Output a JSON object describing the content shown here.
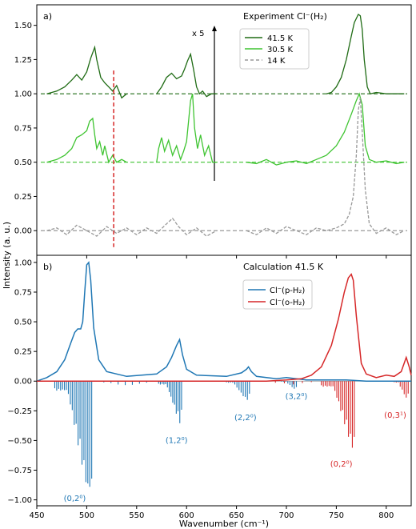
{
  "figure": {
    "ylabel": "Intensity (a. u.)",
    "xlabel": "Wavenumber (cm⁻¹)",
    "xlim": [
      450,
      825
    ],
    "xticks": [
      450,
      500,
      550,
      600,
      650,
      700,
      750,
      800
    ]
  },
  "chart_data": [
    {
      "type": "line",
      "panel": "a)",
      "title": "Experiment Cl⁻(H₂)",
      "ylim": [
        -0.18,
        1.65
      ],
      "yticks": [
        "0.00",
        "0.25",
        "0.50",
        "0.75",
        "1.00",
        "1.25",
        "1.50"
      ],
      "ytick_values": [
        0,
        0.25,
        0.5,
        0.75,
        1.0,
        1.25,
        1.5
      ],
      "legend_position": "top-center",
      "annotation": "x 5",
      "series": [
        {
          "name": "41.5 K",
          "color": "#1f6b14",
          "baseline": 1.0,
          "style": "solid",
          "segments": [
            {
              "x": [
                460,
                470,
                478,
                485,
                490,
                495,
                500,
                504,
                508,
                510,
                514,
                518,
                522,
                526,
                530,
                535,
                540
              ],
              "y": [
                1.0,
                1.02,
                1.05,
                1.1,
                1.14,
                1.1,
                1.16,
                1.26,
                1.34,
                1.25,
                1.12,
                1.08,
                1.05,
                1.02,
                1.06,
                0.97,
                1.0
              ]
            },
            {
              "x": [
                570,
                575,
                580,
                585,
                590,
                595,
                598,
                601,
                604,
                607,
                610,
                613,
                616,
                620,
                625,
                630
              ],
              "y": [
                1.0,
                1.05,
                1.12,
                1.15,
                1.11,
                1.13,
                1.18,
                1.24,
                1.29,
                1.18,
                1.05,
                1.0,
                1.02,
                0.98,
                1.0,
                1.0
              ]
            },
            {
              "x": [
                740,
                745,
                750,
                755,
                760,
                765,
                768,
                772,
                774,
                776,
                778,
                781,
                784,
                790,
                800,
                810,
                818
              ],
              "y": [
                1.0,
                1.01,
                1.05,
                1.12,
                1.25,
                1.42,
                1.52,
                1.58,
                1.57,
                1.47,
                1.25,
                1.05,
                1.0,
                1.01,
                1.0,
                1.0,
                1.0
              ]
            }
          ]
        },
        {
          "name": "30.5 K",
          "color": "#3fc431",
          "baseline": 0.5,
          "style": "solid",
          "segments": [
            {
              "x": [
                460,
                470,
                478,
                485,
                490,
                495,
                500,
                503,
                506,
                508,
                510,
                513,
                516,
                518,
                522,
                526,
                530,
                535,
                540
              ],
              "y": [
                0.5,
                0.52,
                0.55,
                0.6,
                0.68,
                0.7,
                0.73,
                0.8,
                0.82,
                0.7,
                0.6,
                0.65,
                0.55,
                0.62,
                0.5,
                0.55,
                0.5,
                0.52,
                0.5
              ]
            },
            {
              "x": [
                570,
                572,
                575,
                578,
                582,
                586,
                590,
                594,
                597,
                600,
                602,
                604,
                606,
                608,
                611,
                614,
                618,
                622,
                626,
                630
              ],
              "y": [
                0.5,
                0.6,
                0.68,
                0.58,
                0.66,
                0.55,
                0.62,
                0.52,
                0.58,
                0.65,
                0.8,
                0.95,
                1.0,
                0.75,
                0.6,
                0.7,
                0.55,
                0.62,
                0.5,
                0.5
              ]
            },
            {
              "x": [
                660,
                670,
                680,
                690,
                700,
                710,
                720,
                730,
                740,
                750,
                758,
                765,
                770,
                773,
                776,
                779,
                783,
                790,
                800,
                810,
                818
              ],
              "y": [
                0.5,
                0.49,
                0.52,
                0.48,
                0.5,
                0.51,
                0.49,
                0.52,
                0.55,
                0.62,
                0.72,
                0.85,
                0.95,
                1.0,
                0.92,
                0.62,
                0.52,
                0.5,
                0.51,
                0.49,
                0.5
              ]
            }
          ]
        },
        {
          "name": "14 K",
          "color": "#999999",
          "baseline": 0.0,
          "style": "dashed",
          "segments": [
            {
              "x": [
                460,
                470,
                480,
                490,
                500,
                510,
                520,
                530,
                540,
                550,
                560,
                570,
                580,
                586,
                592,
                600,
                610,
                620,
                630
              ],
              "y": [
                0.0,
                0.02,
                -0.03,
                0.04,
                0.0,
                -0.04,
                0.03,
                -0.02,
                0.02,
                -0.03,
                0.02,
                -0.02,
                0.05,
                0.09,
                0.03,
                -0.03,
                0.02,
                -0.04,
                0.0
              ]
            },
            {
              "x": [
                660,
                670,
                680,
                690,
                700,
                710,
                720,
                730,
                740,
                750,
                758,
                763,
                767,
                770,
                772,
                774,
                776,
                779,
                783,
                790,
                800,
                810,
                818
              ],
              "y": [
                0.0,
                -0.03,
                0.02,
                -0.02,
                0.03,
                0.0,
                -0.03,
                0.02,
                0.0,
                0.02,
                0.05,
                0.12,
                0.25,
                0.55,
                0.88,
                0.97,
                0.72,
                0.3,
                0.05,
                -0.02,
                0.02,
                -0.03,
                0.0
              ]
            }
          ]
        }
      ],
      "marker_x": 527
    },
    {
      "type": "line",
      "panel": "b)",
      "title": "Calculation 41.5 K",
      "ylim": [
        -1.05,
        1.06
      ],
      "yticks": [
        "1.00",
        "0.75",
        "0.50",
        "0.25",
        "0.00",
        "−0.25",
        "−0.50",
        "−0.75",
        "−1.00"
      ],
      "ytick_values": [
        1.0,
        0.75,
        0.5,
        0.25,
        0.0,
        -0.25,
        -0.5,
        -0.75,
        -1.0
      ],
      "legend_position": "top-center",
      "series": [
        {
          "name": "Cl⁻(p-H₂)",
          "color": "#1f77b4",
          "x": [
            450,
            460,
            470,
            478,
            484,
            488,
            491,
            494,
            496,
            498,
            500,
            502,
            504,
            507,
            512,
            520,
            540,
            570,
            580,
            585,
            590,
            593,
            596,
            600,
            610,
            640,
            655,
            660,
            662,
            665,
            670,
            690,
            700,
            710,
            720,
            740,
            760,
            780,
            800,
            825
          ],
          "y": [
            0.0,
            0.03,
            0.08,
            0.18,
            0.32,
            0.41,
            0.44,
            0.44,
            0.5,
            0.75,
            0.98,
            1.0,
            0.85,
            0.45,
            0.18,
            0.08,
            0.04,
            0.06,
            0.12,
            0.2,
            0.3,
            0.35,
            0.22,
            0.1,
            0.05,
            0.04,
            0.07,
            0.1,
            0.12,
            0.08,
            0.04,
            0.02,
            0.03,
            0.02,
            0.01,
            0.01,
            0.01,
            0.0,
            0.0,
            0.0
          ]
        },
        {
          "name": "Cl⁻(o-H₂)",
          "color": "#d62728",
          "x": [
            450,
            500,
            600,
            680,
            700,
            715,
            725,
            735,
            745,
            752,
            758,
            762,
            765,
            767,
            770,
            775,
            780,
            790,
            800,
            808,
            815,
            820,
            823,
            825
          ],
          "y": [
            0.0,
            0.0,
            0.0,
            0.0,
            0.01,
            0.02,
            0.05,
            0.12,
            0.3,
            0.52,
            0.75,
            0.87,
            0.9,
            0.85,
            0.55,
            0.15,
            0.06,
            0.03,
            0.05,
            0.04,
            0.08,
            0.2,
            0.12,
            0.05
          ]
        }
      ],
      "sticks": [
        {
          "color": "#1f77b4",
          "center": 502,
          "min_x": 468,
          "max_x": 505,
          "peak": -1.0,
          "count": 20
        },
        {
          "color": "#1f77b4",
          "center": 593,
          "min_x": 572,
          "max_x": 595,
          "peak": -0.36,
          "count": 14
        },
        {
          "color": "#1f77b4",
          "center": 660,
          "min_x": 640,
          "max_x": 663,
          "peak": -0.17,
          "count": 12
        },
        {
          "color": "#1f77b4",
          "center": 708,
          "min_x": 695,
          "max_x": 710,
          "peak": -0.07,
          "count": 8
        },
        {
          "color": "#d62728",
          "center": 766,
          "min_x": 735,
          "max_x": 768,
          "peak": -0.58,
          "count": 18
        },
        {
          "color": "#d62728",
          "center": 820,
          "min_x": 808,
          "max_x": 822,
          "peak": -0.15,
          "count": 8
        },
        {
          "color": "#1f77b4",
          "center": 540,
          "min_x": 510,
          "max_x": 560,
          "peak": -0.04,
          "count": 8
        },
        {
          "color": "#d62728",
          "center": 705,
          "min_x": 680,
          "max_x": 725,
          "peak": -0.03,
          "count": 6
        }
      ],
      "annotations": [
        {
          "text": "(0,2⁰)",
          "color": "#1f77b4",
          "x": 488,
          "y": -1.01
        },
        {
          "text": "(1,2⁰)",
          "color": "#1f77b4",
          "x": 590,
          "y": -0.52
        },
        {
          "text": "(2,2⁰)",
          "color": "#1f77b4",
          "x": 659,
          "y": -0.33
        },
        {
          "text": "(3,2⁰)",
          "color": "#1f77b4",
          "x": 710,
          "y": -0.15
        },
        {
          "text": "(0,2⁰)",
          "color": "#d62728",
          "x": 755,
          "y": -0.72
        },
        {
          "text": "(0,3¹)",
          "color": "#d62728",
          "x": 809,
          "y": -0.31
        }
      ]
    }
  ]
}
